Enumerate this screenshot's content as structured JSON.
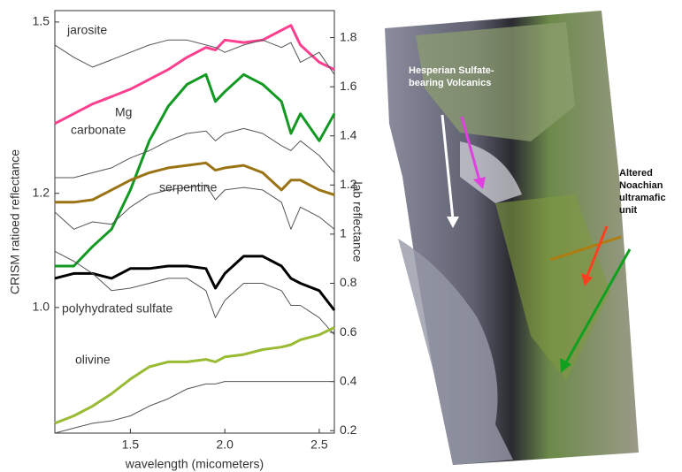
{
  "chart_data": {
    "type": "line",
    "ylabel": "CRISM ratioed reflectance",
    "y2label": "lab reflectance",
    "xlabel": "wavelength (micometers)",
    "xlim": [
      1.1,
      2.58
    ],
    "xticks": [
      1.5,
      {
        "value": 2,
        "label": "2.0"
      },
      2.5
    ],
    "ylim": [
      0.78,
      1.52
    ],
    "yticks": [
      {
        "value": 1,
        "label": "1.0"
      },
      1.2,
      1.5
    ],
    "y2lim": [
      0.19,
      1.91
    ],
    "y2ticks": [
      0.2,
      0.4,
      0.6,
      0.8,
      1,
      1.2,
      1.4,
      1.6,
      1.8
    ],
    "x": [
      1.1,
      1.2,
      1.3,
      1.4,
      1.5,
      1.6,
      1.7,
      1.8,
      1.9,
      1.95,
      2.0,
      2.1,
      2.2,
      2.3,
      2.35,
      2.4,
      2.5,
      2.58
    ],
    "annotations": [
      "jarosite",
      "Mg",
      "carbonate",
      "serpentine",
      "polyhydrated sulfate",
      "olivine"
    ],
    "series": [
      {
        "color": "#ff3f8f",
        "line_width": 3,
        "axis": "y2",
        "values": [
          1.45,
          1.49,
          1.53,
          1.56,
          1.59,
          1.63,
          1.67,
          1.72,
          1.76,
          1.75,
          1.79,
          1.78,
          1.79,
          1.83,
          1.85,
          1.77,
          1.7,
          1.67
        ]
      },
      {
        "color": "#555555",
        "line_width": 1,
        "axis": "y2",
        "values": [
          1.77,
          1.72,
          1.68,
          1.71,
          1.74,
          1.77,
          1.79,
          1.79,
          1.77,
          1.76,
          1.74,
          1.77,
          1.79,
          1.76,
          1.78,
          1.7,
          1.74,
          1.65
        ]
      },
      {
        "color": "#119922",
        "line_width": 3,
        "axis": "y2",
        "values": [
          0.87,
          0.87,
          0.95,
          1.02,
          1.18,
          1.38,
          1.52,
          1.61,
          1.65,
          1.54,
          1.58,
          1.65,
          1.61,
          1.54,
          1.41,
          1.49,
          1.38,
          1.49
        ]
      },
      {
        "color": "#555555",
        "line_width": 1,
        "axis": "y2",
        "values": [
          1.23,
          1.23,
          1.25,
          1.27,
          1.31,
          1.34,
          1.38,
          1.41,
          1.42,
          1.38,
          1.41,
          1.43,
          1.41,
          1.36,
          1.34,
          1.38,
          1.32,
          1.25
        ]
      },
      {
        "color": "#9a7414",
        "line_width": 3,
        "axis": "y2",
        "values": [
          1.13,
          1.13,
          1.14,
          1.18,
          1.22,
          1.25,
          1.27,
          1.28,
          1.29,
          1.26,
          1.27,
          1.28,
          1.25,
          1.18,
          1.22,
          1.22,
          1.18,
          1.16
        ]
      },
      {
        "color": "#555555",
        "line_width": 1,
        "axis": "y2",
        "values": [
          1.09,
          1.02,
          1.05,
          1.04,
          1.11,
          1.16,
          1.18,
          1.19,
          1.2,
          1.14,
          1.18,
          1.19,
          1.18,
          1.13,
          1.02,
          1.11,
          1.07,
          1.02
        ]
      },
      {
        "color": "#000000",
        "line_width": 3,
        "axis": "y2",
        "values": [
          0.82,
          0.84,
          0.84,
          0.82,
          0.86,
          0.86,
          0.87,
          0.87,
          0.86,
          0.78,
          0.84,
          0.91,
          0.91,
          0.87,
          0.82,
          0.8,
          0.77,
          0.69
        ]
      },
      {
        "color": "#555555",
        "line_width": 1,
        "axis": "y2",
        "values": [
          0.93,
          0.89,
          0.84,
          0.77,
          0.78,
          0.8,
          0.82,
          0.82,
          0.77,
          0.66,
          0.73,
          0.8,
          0.8,
          0.77,
          0.71,
          0.71,
          0.66,
          0.59
        ]
      },
      {
        "color": "#99bb33",
        "line_width": 3,
        "axis": "y2",
        "values": [
          0.23,
          0.26,
          0.3,
          0.35,
          0.41,
          0.46,
          0.48,
          0.48,
          0.49,
          0.48,
          0.5,
          0.51,
          0.53,
          0.54,
          0.55,
          0.57,
          0.59,
          0.62
        ]
      },
      {
        "color": "#555555",
        "line_width": 1,
        "axis": "y2",
        "values": [
          0.19,
          0.21,
          0.23,
          0.24,
          0.26,
          0.3,
          0.33,
          0.37,
          0.39,
          0.39,
          0.4,
          0.4,
          0.4,
          0.4,
          0.4,
          0.4,
          0.4,
          0.4
        ]
      }
    ]
  },
  "image": {
    "labels": [
      [
        "Hesperian Sulfate-",
        "bearing Volcanics"
      ],
      [
        "Altered",
        "Noachian",
        "ultramafic",
        "unit"
      ]
    ]
  }
}
